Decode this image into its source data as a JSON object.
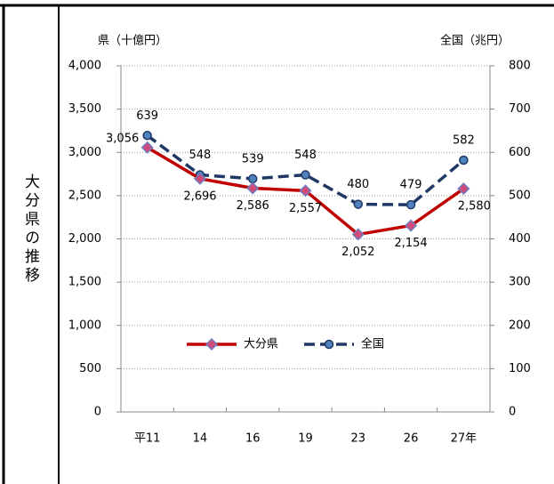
{
  "side_label": "大分県の推移",
  "chart_data": {
    "type": "line",
    "y_axis_title": "県（十億円）",
    "y2_axis_title": "全国（兆円）",
    "categories": [
      "平11",
      "14",
      "16",
      "19",
      "23",
      "26",
      "27年"
    ],
    "series": [
      {
        "name": "大分県",
        "color": "#c00000",
        "marker": "diamond",
        "values": [
          3056,
          2696,
          2586,
          2557,
          2052,
          2154,
          2580
        ],
        "value_labels": [
          "3,056",
          "2,696",
          "2,586",
          "2,557",
          "2,052",
          "2,154",
          "2,580"
        ]
      },
      {
        "name": "全国",
        "color": "#1f3864",
        "marker": "circle",
        "dashed": true,
        "axis": "y2",
        "values": [
          639,
          548,
          539,
          548,
          480,
          479,
          582
        ]
      }
    ],
    "ylim": [
      0,
      4000
    ],
    "yticks": [
      0,
      500,
      {
        "value": 1000,
        "label": "1,000"
      },
      {
        "value": 1500,
        "label": "1,500"
      },
      {
        "value": 2000,
        "label": "2,000"
      },
      {
        "value": 2500,
        "label": "2,500"
      },
      {
        "value": 3000,
        "label": "3,000"
      },
      {
        "value": 3500,
        "label": "3,500"
      },
      {
        "value": 4000,
        "label": "4,000"
      }
    ],
    "y2lim": [
      0,
      800
    ],
    "y2ticks": [
      0,
      100,
      200,
      300,
      400,
      500,
      600,
      700,
      800
    ],
    "grid": true
  }
}
